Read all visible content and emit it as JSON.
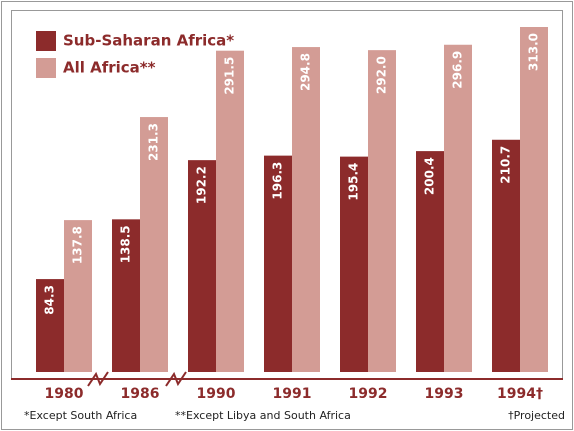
{
  "chart_data": {
    "type": "bar",
    "categories": [
      "1980",
      "1986",
      "1990",
      "1991",
      "1992",
      "1993",
      "1994†"
    ],
    "series": [
      {
        "name": "Sub-Saharan Africa*",
        "color": "#8c2b2b",
        "values": [
          84.3,
          138.5,
          192.2,
          196.3,
          195.4,
          200.4,
          210.7
        ]
      },
      {
        "name": "All Africa**",
        "color": "#d39c95",
        "values": [
          137.8,
          231.3,
          291.5,
          294.8,
          292.0,
          296.9,
          313.0
        ],
        "value_labels": [
          "137.8",
          "231.3",
          "291.5",
          "294.8",
          "292.0",
          "296.9",
          "313.0"
        ]
      }
    ],
    "footnotes": [
      "*Except South Africa",
      "**Except Libya and South Africa",
      "†Projected"
    ]
  }
}
